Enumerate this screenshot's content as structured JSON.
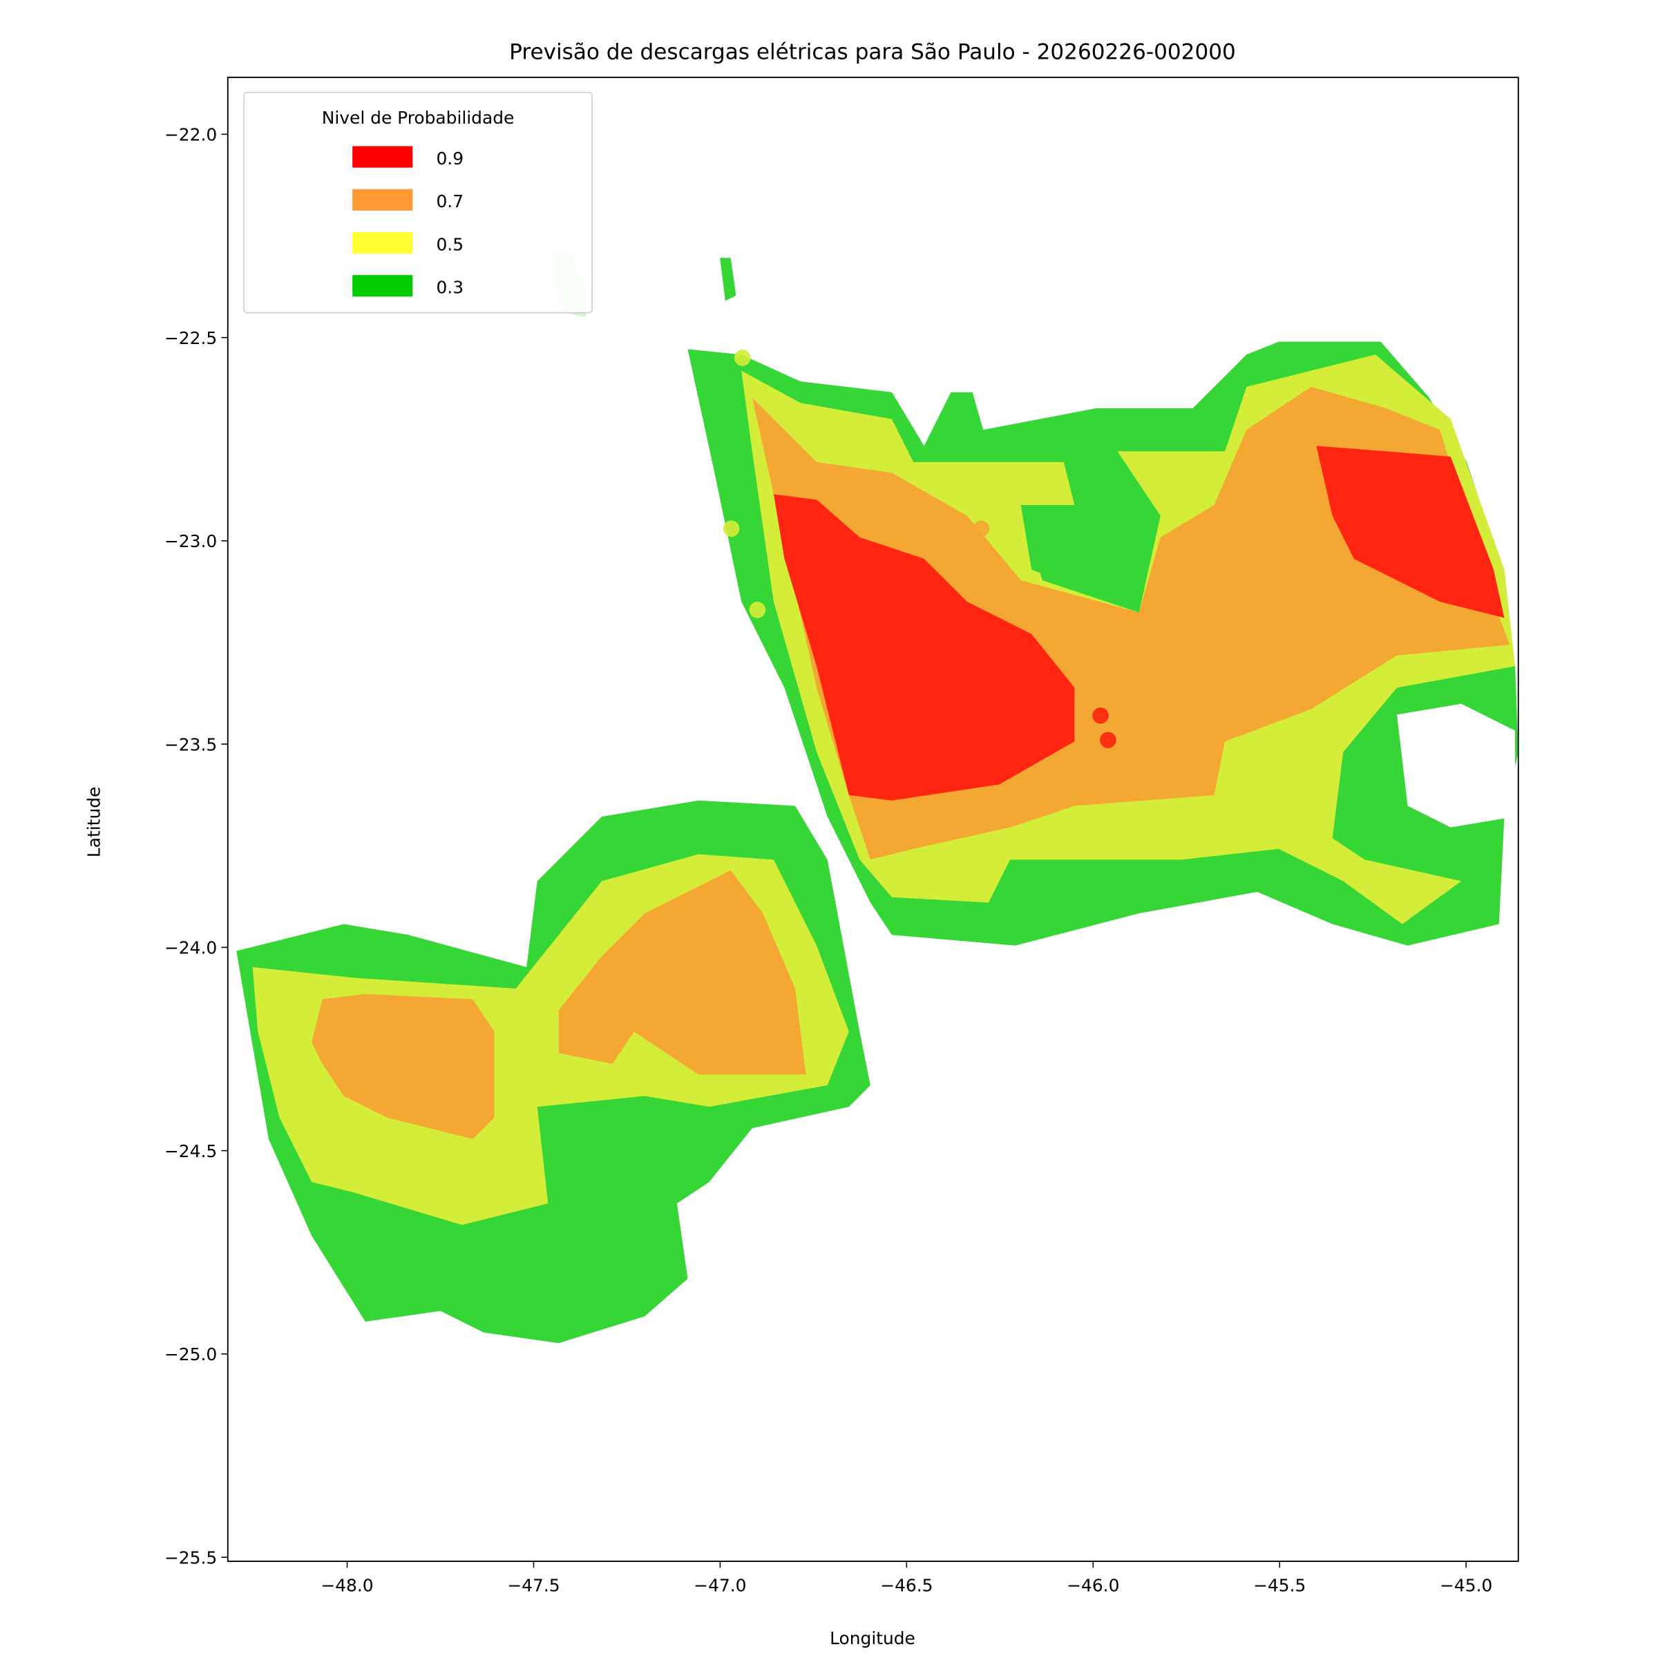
{
  "chart_data": {
    "type": "contourf-map",
    "title": "Previsão de descargas elétricas para São Paulo - 20260226-002000",
    "xlabel": "Longitude",
    "ylabel": "Latitude",
    "xlim": [
      -48.32,
      -44.86
    ],
    "ylim": [
      -25.51,
      -21.86
    ],
    "xticks": [
      -48.0,
      -47.5,
      -47.0,
      -46.5,
      -46.0,
      -45.5,
      -45.0
    ],
    "xtick_labels": [
      "−48.0",
      "−47.5",
      "−47.0",
      "−46.5",
      "−46.0",
      "−45.5",
      "−45.0"
    ],
    "yticks": [
      -22.0,
      -22.5,
      -23.0,
      -23.5,
      -24.0,
      -24.5,
      -25.0,
      -25.5
    ],
    "ytick_labels": [
      "−22.0",
      "−22.5",
      "−23.0",
      "−23.5",
      "−24.0",
      "−24.5",
      "−25.0",
      "−25.5"
    ],
    "grid": false,
    "legend": {
      "title": "Nivel de Probabilidade",
      "placement": "upper-left",
      "entries": [
        {
          "label": "0.9",
          "color": "#ff0000"
        },
        {
          "label": "0.7",
          "color": "#ff9933"
        },
        {
          "label": "0.5",
          "color": "#ffff33"
        },
        {
          "label": "0.3",
          "color": "#00cc00"
        }
      ]
    },
    "fill_colors": {
      "0.3": "#35d635",
      "0.5": "#d4ed38",
      "0.7": "#f5a733",
      "0.9": "#ff2510"
    },
    "points": [
      {
        "lon": -46.94,
        "lat": -22.55,
        "level": "0.5"
      },
      {
        "lon": -46.97,
        "lat": -22.97,
        "level": "0.5"
      },
      {
        "lon": -46.84,
        "lat": -23.12,
        "level": "0.5"
      },
      {
        "lon": -46.9,
        "lat": -23.17,
        "level": "0.5"
      },
      {
        "lon": -46.51,
        "lat": -22.9,
        "level": "0.7"
      },
      {
        "lon": -46.3,
        "lat": -22.97,
        "level": "0.7"
      },
      {
        "lon": -45.98,
        "lat": -23.43,
        "level": "0.9"
      },
      {
        "lon": -45.96,
        "lat": -23.49,
        "level": "0.9"
      }
    ]
  }
}
